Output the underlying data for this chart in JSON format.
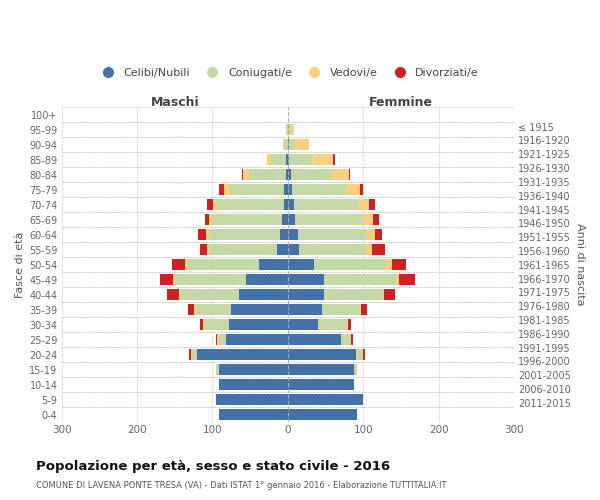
{
  "age_groups": [
    "100+",
    "95-99",
    "90-94",
    "85-89",
    "80-84",
    "75-79",
    "70-74",
    "65-69",
    "60-64",
    "55-59",
    "50-54",
    "45-49",
    "40-44",
    "35-39",
    "30-34",
    "25-29",
    "20-24",
    "15-19",
    "10-14",
    "5-9",
    "0-4"
  ],
  "birth_years": [
    "≤ 1915",
    "1916-1920",
    "1921-1925",
    "1926-1930",
    "1931-1935",
    "1936-1940",
    "1941-1945",
    "1946-1950",
    "1951-1955",
    "1956-1960",
    "1961-1965",
    "1966-1970",
    "1971-1975",
    "1976-1980",
    "1981-1985",
    "1986-1990",
    "1991-1995",
    "1996-2000",
    "2001-2005",
    "2006-2010",
    "2011-2015"
  ],
  "maschi": {
    "celibi": [
      0,
      0,
      0,
      2,
      3,
      5,
      5,
      8,
      10,
      14,
      38,
      55,
      65,
      75,
      78,
      82,
      120,
      92,
      92,
      95,
      92
    ],
    "coniugati": [
      0,
      2,
      5,
      20,
      48,
      72,
      90,
      92,
      95,
      90,
      95,
      95,
      78,
      48,
      33,
      10,
      7,
      4,
      0,
      0,
      0
    ],
    "vedovi": [
      0,
      0,
      2,
      6,
      8,
      8,
      4,
      4,
      4,
      3,
      3,
      2,
      2,
      2,
      2,
      2,
      2,
      0,
      0,
      0,
      0
    ],
    "divorziati": [
      0,
      0,
      0,
      0,
      2,
      6,
      8,
      6,
      10,
      10,
      18,
      18,
      16,
      8,
      4,
      2,
      2,
      0,
      0,
      0,
      0
    ]
  },
  "femmine": {
    "nubili": [
      0,
      0,
      2,
      2,
      4,
      5,
      8,
      10,
      13,
      15,
      35,
      48,
      48,
      45,
      40,
      70,
      90,
      88,
      88,
      100,
      92
    ],
    "coniugate": [
      0,
      4,
      8,
      30,
      55,
      72,
      85,
      90,
      92,
      88,
      95,
      95,
      78,
      50,
      38,
      12,
      8,
      4,
      0,
      0,
      0
    ],
    "vedove": [
      0,
      4,
      18,
      28,
      22,
      18,
      15,
      13,
      10,
      8,
      8,
      4,
      2,
      2,
      2,
      2,
      2,
      0,
      0,
      0,
      0
    ],
    "divorziate": [
      0,
      0,
      0,
      2,
      2,
      4,
      8,
      8,
      10,
      18,
      18,
      22,
      14,
      8,
      4,
      2,
      2,
      0,
      0,
      0,
      0
    ]
  },
  "colors": {
    "celibi": "#4472a8",
    "coniugati": "#c5d9a8",
    "vedovi": "#f8d080",
    "divorziati": "#cc2222"
  },
  "title": "Popolazione per età, sesso e stato civile - 2016",
  "subtitle": "COMUNE DI LAVENA PONTE TRESA (VA) - Dati ISTAT 1° gennaio 2016 - Elaborazione TUTTITALIA.IT",
  "xlabel_left": "Maschi",
  "xlabel_right": "Femmine",
  "ylabel_left": "Fasce di età",
  "ylabel_right": "Anni di nascita",
  "xlim": 300,
  "background_color": "#ffffff",
  "bar_height": 0.75
}
